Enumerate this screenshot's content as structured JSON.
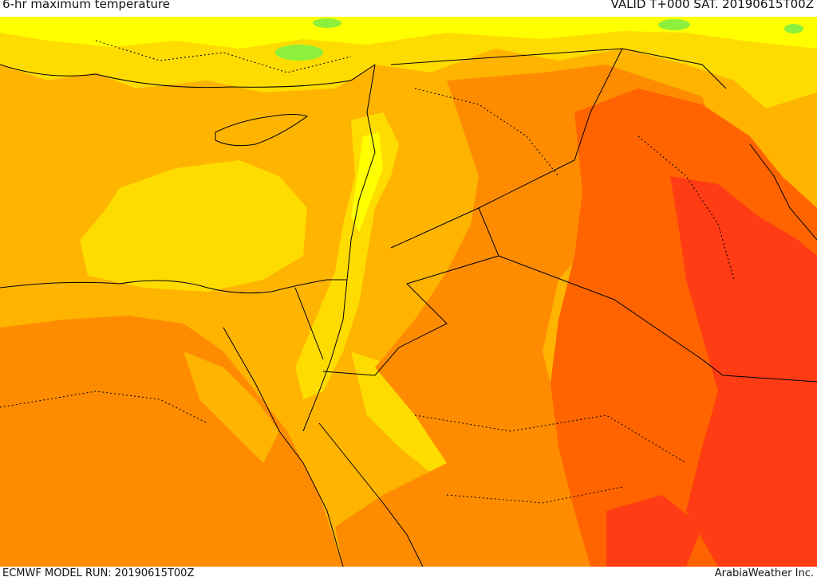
{
  "header": {
    "title": "6-hr maximum temperature",
    "valid": "VALID T+000 SAT. 20190615T00Z"
  },
  "footer": {
    "model_run": "ECMWF MODEL RUN: 20190615T00Z",
    "credit": "ArabiaWeather Inc."
  },
  "palette": {
    "green": "#8cf03c",
    "light_yellow": "#ffff00",
    "yellow": "#ffdc00",
    "light_orange": "#ffb400",
    "orange": "#ff8c00",
    "dark_orange": "#ff6400",
    "red": "#ff3c14"
  }
}
